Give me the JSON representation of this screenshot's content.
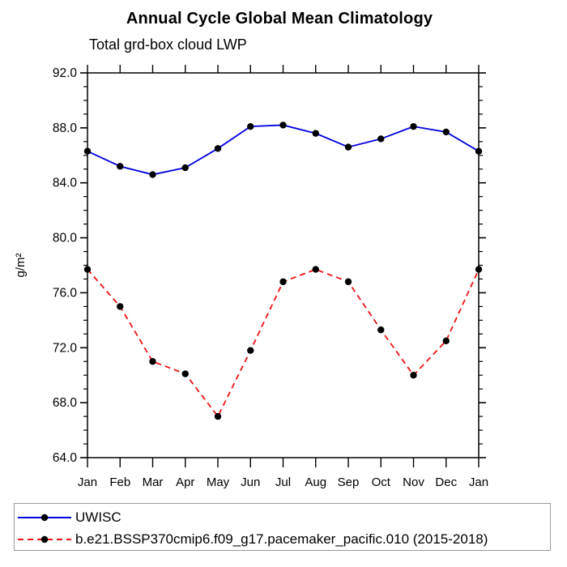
{
  "page": {
    "title": "Annual Cycle Global Mean Climatology",
    "subtitle": "Total grd-box cloud LWP"
  },
  "colors": {
    "uwisc_line": "#0000e0",
    "model_line": "#ee1111",
    "marker": "#000000",
    "axis": "#000000"
  },
  "chart_data": {
    "type": "line",
    "title": "Annual Cycle Global Mean Climatology",
    "subtitle": "Total grd-box cloud LWP",
    "categories": [
      "Jan",
      "Feb",
      "Mar",
      "Apr",
      "May",
      "Jun",
      "Jul",
      "Aug",
      "Sep",
      "Oct",
      "Nov",
      "Dec",
      "Jan"
    ],
    "xlabel": "",
    "ylabel": "g/m²",
    "ylim": [
      64.0,
      92.0
    ],
    "ytick_major_step": 4,
    "ytick_minor_step": 1,
    "ytick_labels": [
      "64.0",
      "68.0",
      "72.0",
      "76.0",
      "80.0",
      "84.0",
      "88.0",
      "92.0"
    ],
    "grid": false,
    "legend_position": "bottom-box",
    "marker": {
      "shape": "circle",
      "color": "#000000",
      "radius": 4.2
    },
    "series": [
      {
        "name": "UWISC",
        "color": "#0000e0",
        "line_style": "solid",
        "values": [
          86.3,
          85.2,
          84.6,
          85.1,
          86.5,
          88.1,
          88.2,
          87.6,
          86.6,
          87.2,
          88.1,
          87.7,
          86.3
        ]
      },
      {
        "name": "b.e21.BSSP370cmip6.f09_g17.pacemaker_pacific.010 (2015-2018)",
        "color": "#ee1111",
        "line_style": "dashed",
        "values": [
          77.7,
          75.0,
          71.0,
          70.1,
          67.0,
          71.8,
          76.8,
          77.7,
          76.8,
          73.3,
          70.0,
          72.5,
          77.7
        ]
      }
    ]
  },
  "legend": {
    "entries": [
      {
        "label": "UWISC",
        "series": 0
      },
      {
        "label": "b.e21.BSSP370cmip6.f09_g17.pacemaker_pacific.010 (2015-2018)",
        "series": 1
      }
    ]
  }
}
